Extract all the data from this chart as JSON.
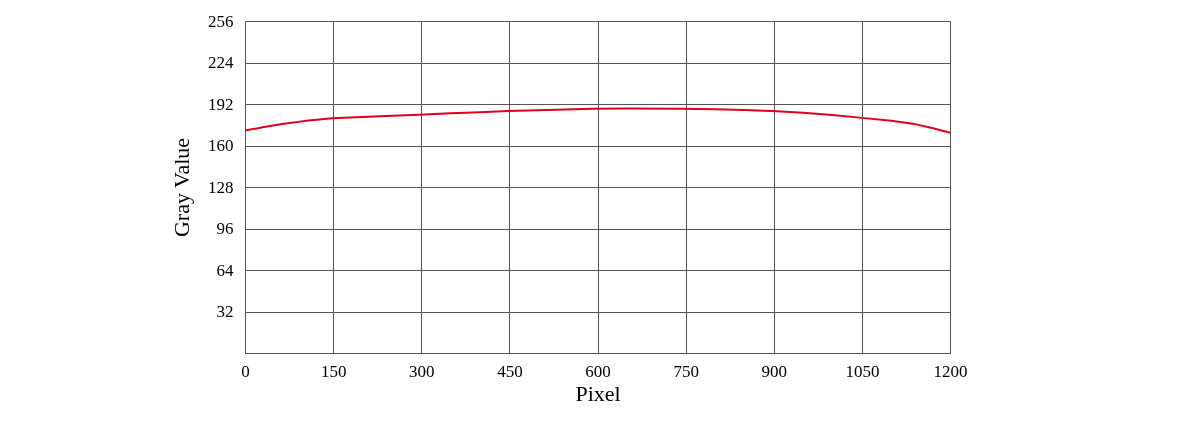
{
  "chart_data": {
    "type": "line",
    "xlabel": "Pixel",
    "ylabel": "Gray Value",
    "x": [
      0,
      30,
      63,
      100,
      148,
      200,
      240,
      297,
      350,
      400,
      448,
      530,
      591,
      650,
      744,
      800,
      850,
      897,
      950,
      1000,
      1050,
      1100,
      1140,
      1170,
      1200
    ],
    "series": [
      {
        "color": "#e0001b",
        "values": [
          171.5,
          174,
          176.5,
          178.8,
          181,
          182,
          182.8,
          183.7,
          184.8,
          185.7,
          186.6,
          187.6,
          188.3,
          188.5,
          188.4,
          188.0,
          187.4,
          186.6,
          185.2,
          183.5,
          181.3,
          179,
          176.5,
          173.5,
          169.8
        ]
      }
    ],
    "xlim": [
      0,
      1200
    ],
    "xticks": [
      0,
      150,
      300,
      450,
      600,
      750,
      900,
      1050,
      1200
    ],
    "ylim": [
      0,
      256
    ],
    "yticks": [
      32,
      64,
      96,
      128,
      160,
      192,
      224,
      256
    ],
    "grid": true,
    "marker": "none",
    "line_style": "solid"
  }
}
